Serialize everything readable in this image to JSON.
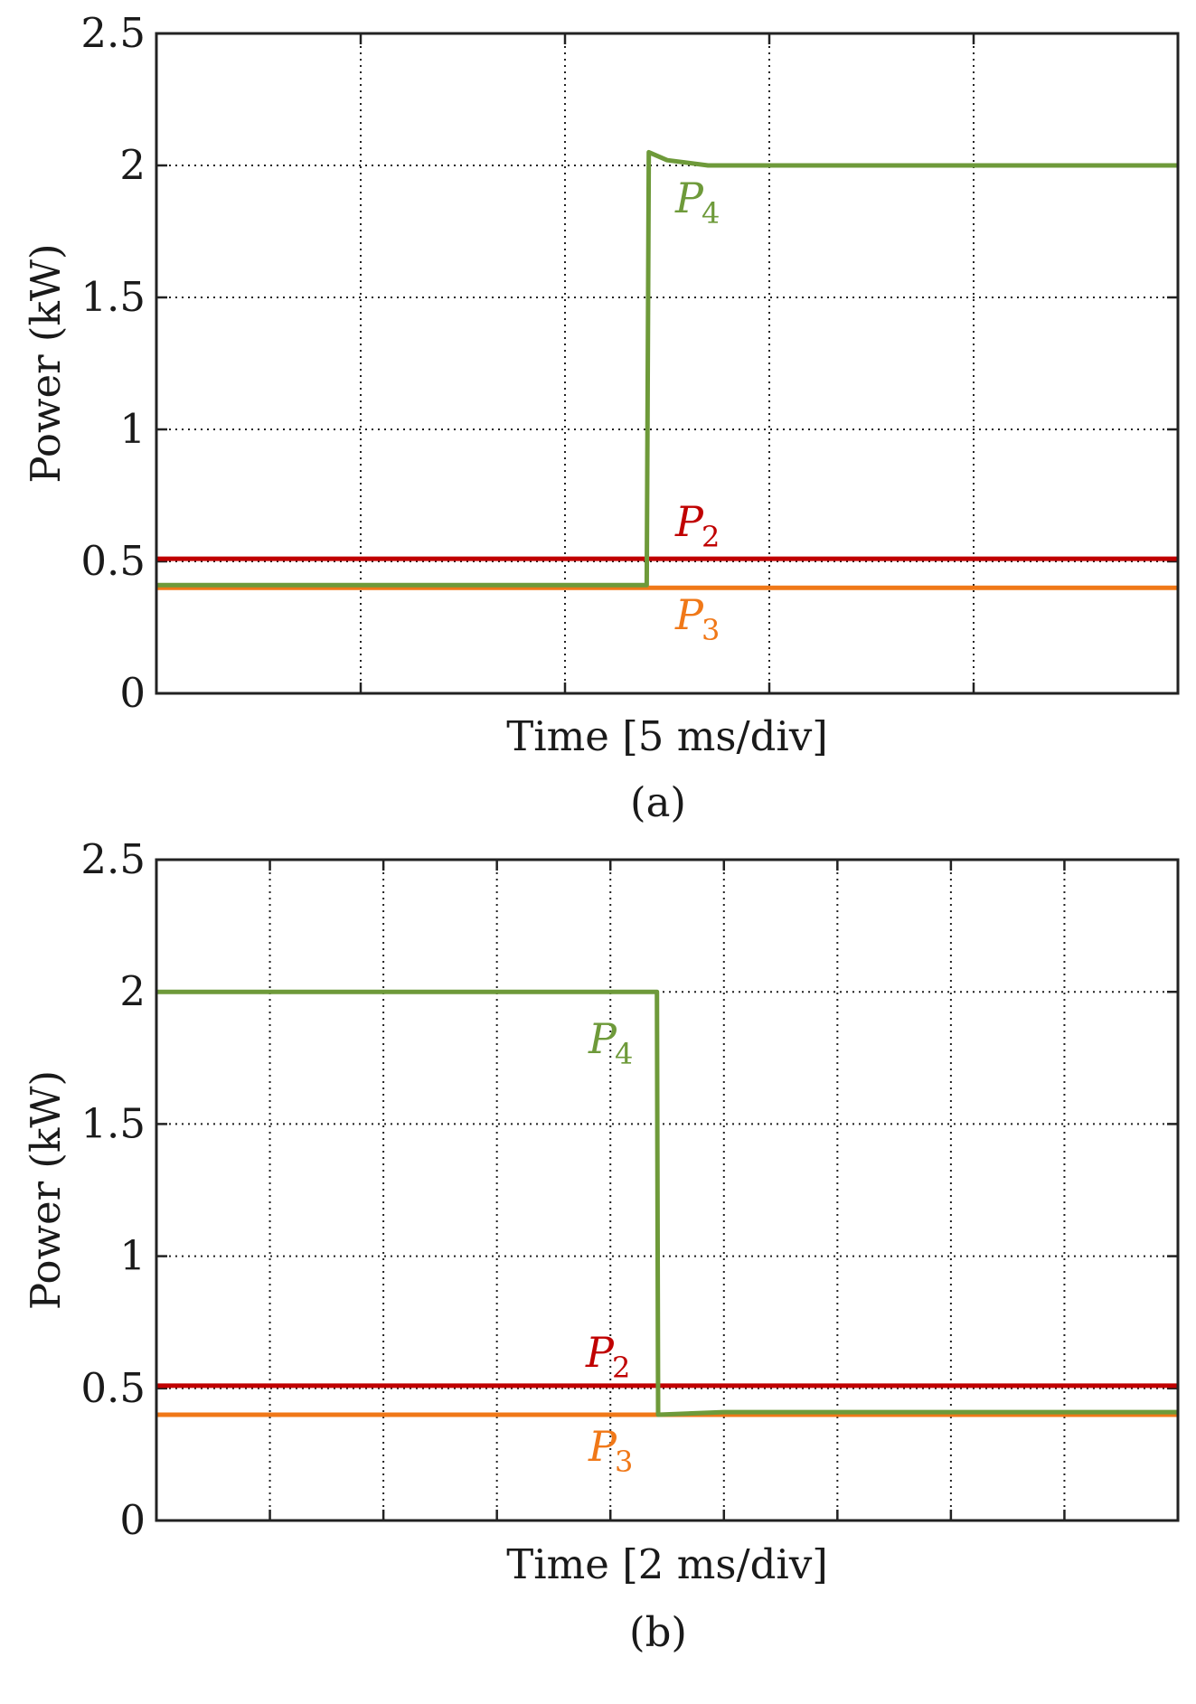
{
  "chart_data": [
    {
      "type": "line",
      "caption": "(a)",
      "xlabel": "Time [5 ms/div]",
      "ylabel": "Power (kW)",
      "ylim": [
        0,
        2.5
      ],
      "yticks": [
        "0",
        "0.5",
        "1",
        "1.5",
        "2",
        "2.5"
      ],
      "xlim": [
        0,
        5
      ],
      "x_divisions": 5,
      "grid": true,
      "series": [
        {
          "name": "P2",
          "label_main": "P",
          "label_sub": "2",
          "color": "#c00000",
          "x": [
            0,
            5
          ],
          "y": [
            0.51,
            0.51
          ]
        },
        {
          "name": "P3",
          "label_main": "P",
          "label_sub": "3",
          "color": "#f07818",
          "x": [
            0,
            5
          ],
          "y": [
            0.4,
            0.4
          ]
        },
        {
          "name": "P4",
          "label_main": "P",
          "label_sub": "4",
          "color": "#6e9a3a",
          "x": [
            0,
            2.4,
            2.41,
            2.5,
            2.7,
            3.0,
            5.0
          ],
          "y": [
            0.41,
            0.41,
            2.05,
            2.02,
            2.0,
            2.0,
            2.0
          ]
        }
      ]
    },
    {
      "type": "line",
      "caption": "(b)",
      "xlabel": "Time [2 ms/div]",
      "ylabel": "Power (kW)",
      "ylim": [
        0,
        2.5
      ],
      "yticks": [
        "0",
        "0.5",
        "1",
        "1.5",
        "2",
        "2.5"
      ],
      "xlim": [
        0,
        9
      ],
      "x_divisions": 9,
      "grid": true,
      "series": [
        {
          "name": "P2",
          "label_main": "P",
          "label_sub": "2",
          "color": "#c00000",
          "x": [
            0,
            9
          ],
          "y": [
            0.51,
            0.51
          ]
        },
        {
          "name": "P3",
          "label_main": "P",
          "label_sub": "3",
          "color": "#f07818",
          "x": [
            0,
            9
          ],
          "y": [
            0.4,
            0.4
          ]
        },
        {
          "name": "P4",
          "label_main": "P",
          "label_sub": "4",
          "color": "#6e9a3a",
          "x": [
            0,
            4.41,
            4.42,
            5.0,
            6.0,
            9.0
          ],
          "y": [
            2.0,
            2.0,
            0.4,
            0.41,
            0.41,
            0.41
          ]
        }
      ]
    }
  ]
}
